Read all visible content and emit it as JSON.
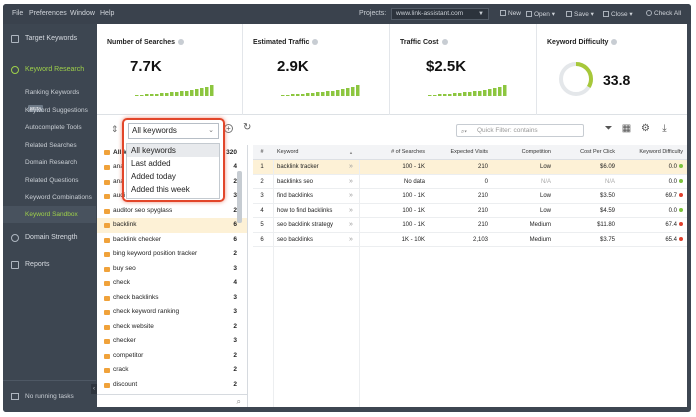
{
  "menu": {
    "file": "File",
    "preferences": "Preferences",
    "window": "Window",
    "help": "Help",
    "projects_label": "Projects:",
    "project_value": "www.link-assistant.com",
    "buttons": [
      "New",
      "Open",
      "Save",
      "Close",
      "Check All"
    ]
  },
  "sidebar": {
    "target_keywords": "Target Keywords",
    "keyword_research": "Keyword Research",
    "sub_items": [
      {
        "label": "Ranking Keywords",
        "badge": "BETA"
      },
      {
        "label": "Keyword Suggestions"
      },
      {
        "label": "Autocomplete Tools"
      },
      {
        "label": "Related Searches"
      },
      {
        "label": "Domain Research"
      },
      {
        "label": "Related Questions"
      },
      {
        "label": "Keyword Combinations"
      },
      {
        "label": "Keyword Sandbox"
      }
    ],
    "domain_strength": "Domain Strength",
    "reports": "Reports",
    "running_tasks": "No running tasks"
  },
  "metrics": {
    "searches": {
      "title": "Number of Searches",
      "value": "7.7K"
    },
    "traffic": {
      "title": "Estimated Traffic",
      "value": "2.9K"
    },
    "cost": {
      "title": "Traffic Cost",
      "value": "$2.5K"
    },
    "difficulty": {
      "title": "Keyword Difficulty",
      "value": "33.8",
      "level": 0.338
    }
  },
  "toolbar": {
    "keyword_filter": "All keywords",
    "filter_placeholder": "Quick Filter: contains"
  },
  "dropdown": {
    "options": [
      "All keywords",
      "Last added",
      "Added today",
      "Added this week"
    ]
  },
  "groups": {
    "header_label": "All k",
    "header_count": "320",
    "items": [
      {
        "name": "ana",
        "count": "4"
      },
      {
        "name": "ana",
        "count": "2"
      },
      {
        "name": "audi",
        "count": "3"
      },
      {
        "name": "auditor seo spyglass",
        "count": "2"
      },
      {
        "name": "backlink",
        "count": "6"
      },
      {
        "name": "backlink checker",
        "count": "6"
      },
      {
        "name": "bing keyword position tracker",
        "count": "2"
      },
      {
        "name": "buy seo",
        "count": "3"
      },
      {
        "name": "check",
        "count": "4"
      },
      {
        "name": "check backlinks",
        "count": "3"
      },
      {
        "name": "check keyword ranking",
        "count": "3"
      },
      {
        "name": "check website",
        "count": "2"
      },
      {
        "name": "checker",
        "count": "3"
      },
      {
        "name": "competitor",
        "count": "2"
      },
      {
        "name": "crack",
        "count": "2"
      },
      {
        "name": "discount",
        "count": "2"
      }
    ]
  },
  "table": {
    "headers": [
      "#",
      "Keyword",
      "# of Searches",
      "Expected Visits",
      "Competition",
      "Cost Per Click",
      "Keyword Difficulty"
    ],
    "rows": [
      {
        "n": "1",
        "keyword": "backlink tracker",
        "searches": "100 - 1K",
        "visits": "210",
        "competition": "Low",
        "cpc": "$6.09",
        "kd": "0.0",
        "kd_color": "#7cc33c"
      },
      {
        "n": "2",
        "keyword": "backlinks seo",
        "searches": "No data",
        "visits": "0",
        "competition": "N/A",
        "cpc": "N/A",
        "kd": "0.0",
        "kd_color": "#7cc33c"
      },
      {
        "n": "3",
        "keyword": "find backlinks",
        "searches": "100 - 1K",
        "visits": "210",
        "competition": "Low",
        "cpc": "$3.50",
        "kd": "69.7",
        "kd_color": "#e0402e"
      },
      {
        "n": "4",
        "keyword": "how to find backlinks",
        "searches": "100 - 1K",
        "visits": "210",
        "competition": "Low",
        "cpc": "$4.59",
        "kd": "0.0",
        "kd_color": "#7cc33c"
      },
      {
        "n": "5",
        "keyword": "seo backlink strategy",
        "searches": "100 - 1K",
        "visits": "210",
        "competition": "Medium",
        "cpc": "$11.80",
        "kd": "67.4",
        "kd_color": "#e0402e"
      },
      {
        "n": "6",
        "keyword": "seo backlinks",
        "searches": "1K - 10K",
        "visits": "2,103",
        "competition": "Medium",
        "cpc": "$3.75",
        "kd": "65.4",
        "kd_color": "#e0402e"
      }
    ]
  },
  "colors": {
    "accent_green": "#9ed04a",
    "gauge_green": "#a7c83a",
    "highlight_red": "#e2462a",
    "selected_row": "#fdf1d6"
  }
}
